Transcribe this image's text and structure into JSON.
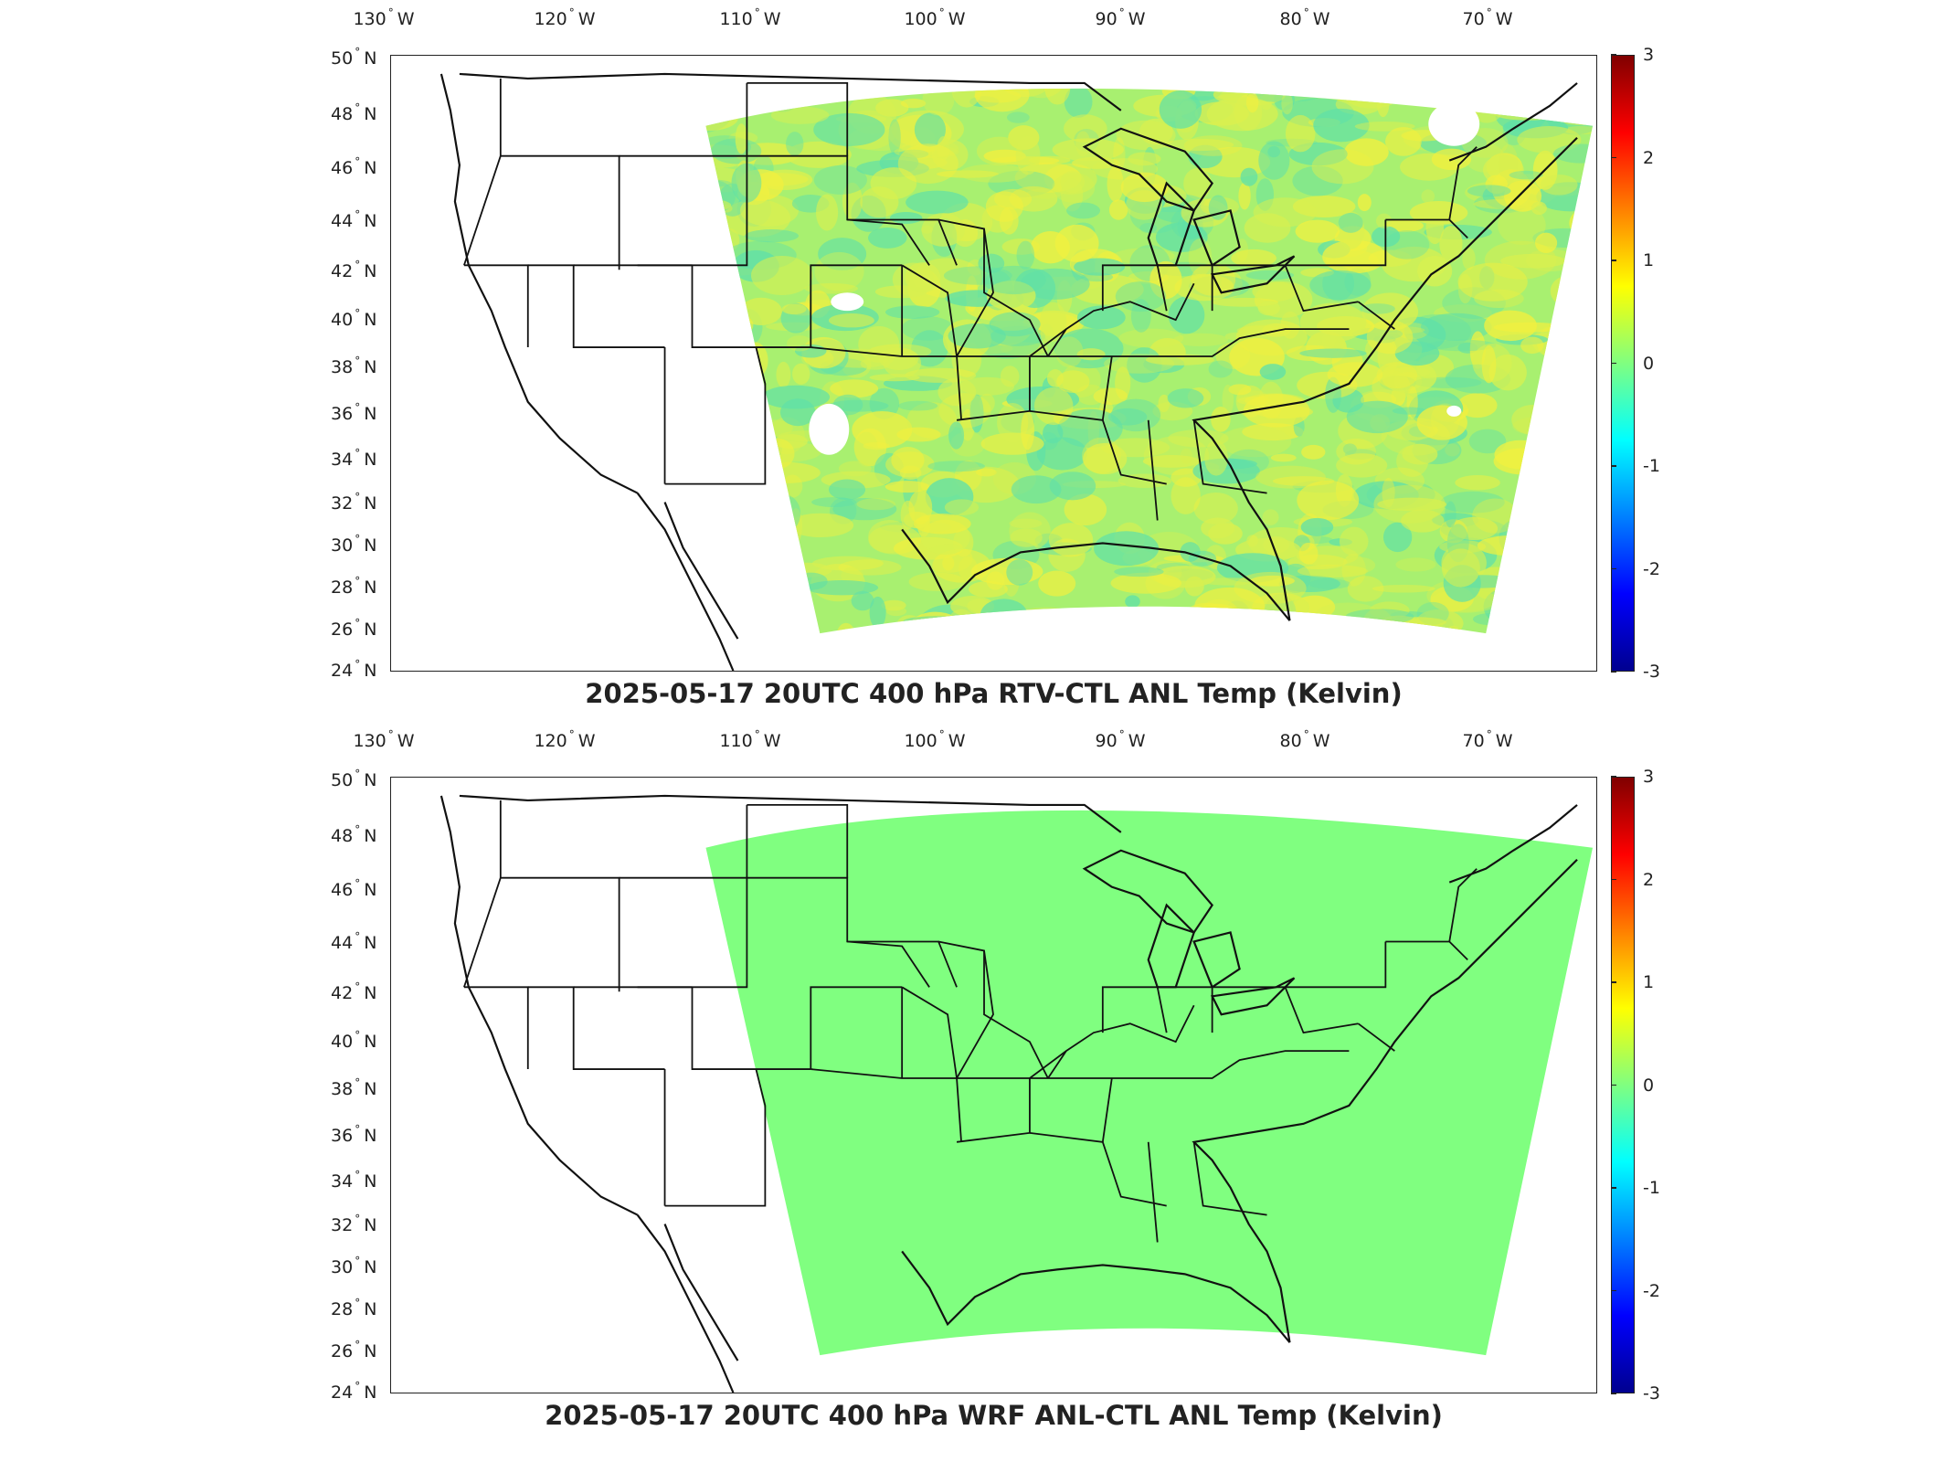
{
  "lon_axis": {
    "labels": [
      {
        "value": "130",
        "suffix": "W"
      },
      {
        "value": "120",
        "suffix": "W"
      },
      {
        "value": "110",
        "suffix": "W"
      },
      {
        "value": "100",
        "suffix": "W"
      },
      {
        "value": "90",
        "suffix": "W"
      },
      {
        "value": "80",
        "suffix": "W"
      },
      {
        "value": "70",
        "suffix": "W"
      }
    ]
  },
  "lat_axis": {
    "labels": [
      {
        "value": "50",
        "suffix": "N"
      },
      {
        "value": "48",
        "suffix": "N"
      },
      {
        "value": "46",
        "suffix": "N"
      },
      {
        "value": "44",
        "suffix": "N"
      },
      {
        "value": "42",
        "suffix": "N"
      },
      {
        "value": "40",
        "suffix": "N"
      },
      {
        "value": "38",
        "suffix": "N"
      },
      {
        "value": "36",
        "suffix": "N"
      },
      {
        "value": "34",
        "suffix": "N"
      },
      {
        "value": "32",
        "suffix": "N"
      },
      {
        "value": "30",
        "suffix": "N"
      },
      {
        "value": "28",
        "suffix": "N"
      },
      {
        "value": "26",
        "suffix": "N"
      },
      {
        "value": "24",
        "suffix": "N"
      }
    ]
  },
  "colorbar": {
    "ticks": [
      "3",
      "2",
      "1",
      "0",
      "-1",
      "-2",
      "-3"
    ],
    "colormap": [
      "#00008f",
      "#0000ff",
      "#0080ff",
      "#00ffff",
      "#80ff80",
      "#ffff00",
      "#ff8000",
      "#ff0000",
      "#800000"
    ]
  },
  "panels": [
    {
      "title": "2025-05-17 20UTC 400 hPa RTV-CTL ANL Temp (Kelvin)",
      "field": "mixed",
      "fill_colors": [
        "#a8f070",
        "#d8f050",
        "#60e0a8",
        "#f0f040"
      ]
    },
    {
      "title": "2025-05-17 20UTC 400 hPa WRF ANL-CTL ANL Temp (Kelvin)",
      "field": "uniform",
      "fill_colors": [
        "#80ff80"
      ]
    }
  ]
}
